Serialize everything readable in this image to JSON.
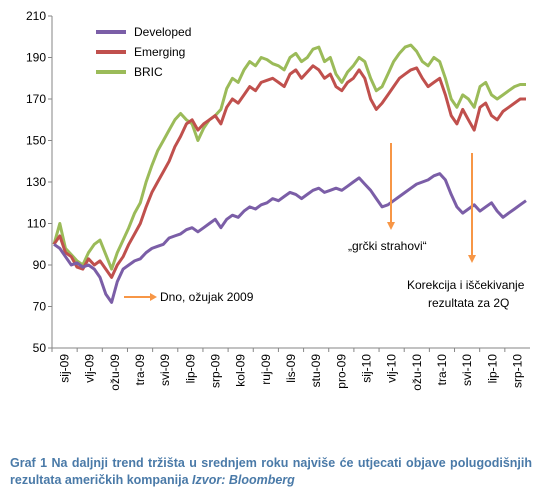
{
  "chart_data": {
    "type": "line",
    "title": "",
    "xlabel": "",
    "ylabel": "",
    "ylim": [
      50,
      210
    ],
    "yticks": [
      50,
      70,
      90,
      110,
      130,
      150,
      170,
      190,
      210
    ],
    "x_tick_labels": [
      "sij-09",
      "vlj-09",
      "ožu-09",
      "tra-09",
      "svi-09",
      "lip-09",
      "srp-09",
      "kol-09",
      "ruj-09",
      "lis-09",
      "stu-09",
      "pro-09",
      "sij-10",
      "vlj-10",
      "ožu-10",
      "tra-10",
      "svi-10",
      "lip-10",
      "srp-10"
    ],
    "legend_position": "top-left",
    "grid": false,
    "series": [
      {
        "name": "Developed",
        "color": "#7b5ea7",
        "values": [
          100,
          98,
          94,
          90,
          91,
          89,
          90,
          88,
          84,
          76,
          72,
          82,
          88,
          90,
          92,
          93,
          96,
          98,
          99,
          100,
          103,
          104,
          105,
          107,
          108,
          106,
          108,
          110,
          112,
          108,
          112,
          114,
          113,
          116,
          118,
          117,
          119,
          120,
          122,
          121,
          123,
          125,
          124,
          122,
          124,
          126,
          127,
          125,
          126,
          127,
          126,
          128,
          130,
          132,
          129,
          126,
          122,
          118,
          119,
          121,
          123,
          125,
          127,
          129,
          130,
          131,
          133,
          134,
          131,
          124,
          118,
          115,
          117,
          119,
          116,
          118,
          120,
          116,
          113,
          115,
          117,
          119,
          121
        ]
      },
      {
        "name": "Emerging",
        "color": "#c0504d",
        "values": [
          100,
          104,
          96,
          94,
          89,
          88,
          93,
          90,
          92,
          88,
          84,
          90,
          94,
          100,
          105,
          110,
          118,
          125,
          130,
          135,
          140,
          147,
          152,
          158,
          160,
          155,
          158,
          160,
          162,
          158,
          166,
          170,
          168,
          172,
          176,
          174,
          178,
          179,
          180,
          178,
          176,
          182,
          184,
          180,
          183,
          186,
          184,
          180,
          182,
          176,
          174,
          178,
          180,
          184,
          180,
          170,
          165,
          168,
          172,
          176,
          180,
          182,
          184,
          185,
          180,
          176,
          178,
          180,
          172,
          162,
          158,
          165,
          160,
          155,
          166,
          168,
          162,
          160,
          164,
          166,
          168,
          170,
          170
        ]
      },
      {
        "name": "BRIC",
        "color": "#9bbb59",
        "values": [
          100,
          110,
          98,
          95,
          92,
          90,
          96,
          100,
          102,
          95,
          88,
          96,
          102,
          108,
          115,
          120,
          130,
          138,
          145,
          150,
          155,
          160,
          163,
          160,
          158,
          150,
          156,
          160,
          162,
          165,
          175,
          180,
          178,
          184,
          188,
          186,
          190,
          189,
          187,
          186,
          184,
          190,
          192,
          188,
          190,
          194,
          195,
          188,
          190,
          182,
          178,
          183,
          186,
          190,
          188,
          180,
          174,
          176,
          182,
          188,
          192,
          195,
          196,
          193,
          188,
          186,
          190,
          188,
          180,
          170,
          166,
          172,
          170,
          166,
          176,
          178,
          172,
          170,
          172,
          174,
          176,
          177,
          177
        ]
      }
    ],
    "annotations": [
      "Dno, ožujak 2009",
      "„grčki strahovi“",
      "Korekcija i iščekivanje",
      "rezultata za 2Q"
    ]
  },
  "caption": {
    "label": "Graf 1",
    "text": " Na daljnji trend tržišta u srednjem roku najviše će utjecati objave polugodišnjih rezultata američkih kompanija ",
    "source": "Izvor: Bloomberg"
  }
}
